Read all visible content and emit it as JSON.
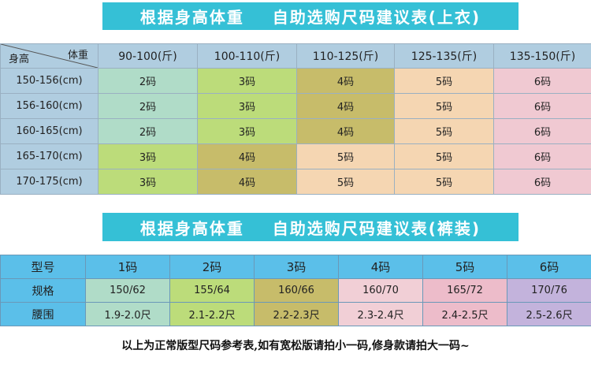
{
  "top_title": "根据身高体重    自助选购尺码建议表(上衣)",
  "bottom_title": "根据身高体重    自助选购尺码建议表(裤装)",
  "top_table": {
    "corner_weight": "体重",
    "corner_height": "身高",
    "weight_headers": [
      "90-100(斤)",
      "100-110(斤)",
      "110-125(斤)",
      "125-135(斤)",
      "135-150(斤)"
    ],
    "rows": [
      {
        "height": "150-156(cm)",
        "cells": [
          "2码",
          "3码",
          "4码",
          "5码",
          "6码"
        ]
      },
      {
        "height": "156-160(cm)",
        "cells": [
          "2码",
          "3码",
          "4码",
          "5码",
          "6码"
        ]
      },
      {
        "height": "160-165(cm)",
        "cells": [
          "2码",
          "3码",
          "4码",
          "5码",
          "6码"
        ]
      },
      {
        "height": "165-170(cm)",
        "cells": [
          "3码",
          "4码",
          "5码",
          "5码",
          "6码"
        ]
      },
      {
        "height": "170-175(cm)",
        "cells": [
          "3码",
          "4码",
          "5码",
          "5码",
          "6码"
        ]
      }
    ],
    "colors": {
      "2码": "#b0dcc8",
      "3码": "#bcdc7a",
      "4码": "#c7bc6a",
      "5码": "#f5d6b2",
      "6码": "#f0c9d2"
    }
  },
  "bottom_table": {
    "header_label": "型号",
    "sizes": [
      "1码",
      "2码",
      "3码",
      "4码",
      "5码",
      "6码"
    ],
    "spec_label": "规格",
    "specs": [
      "150/62",
      "155/64",
      "160/66",
      "160/70",
      "165/72",
      "170/76"
    ],
    "waist_label": "腰围",
    "waists": [
      "1.9-2.0尺",
      "2.1-2.2尺",
      "2.2-2.3尺",
      "2.3-2.4尺",
      "2.4-2.5尺",
      "2.5-2.6尺"
    ]
  },
  "footer_note": "以上为正常版型尺码参考表,如有宽松版请拍小一码,修身款请拍大一码~"
}
